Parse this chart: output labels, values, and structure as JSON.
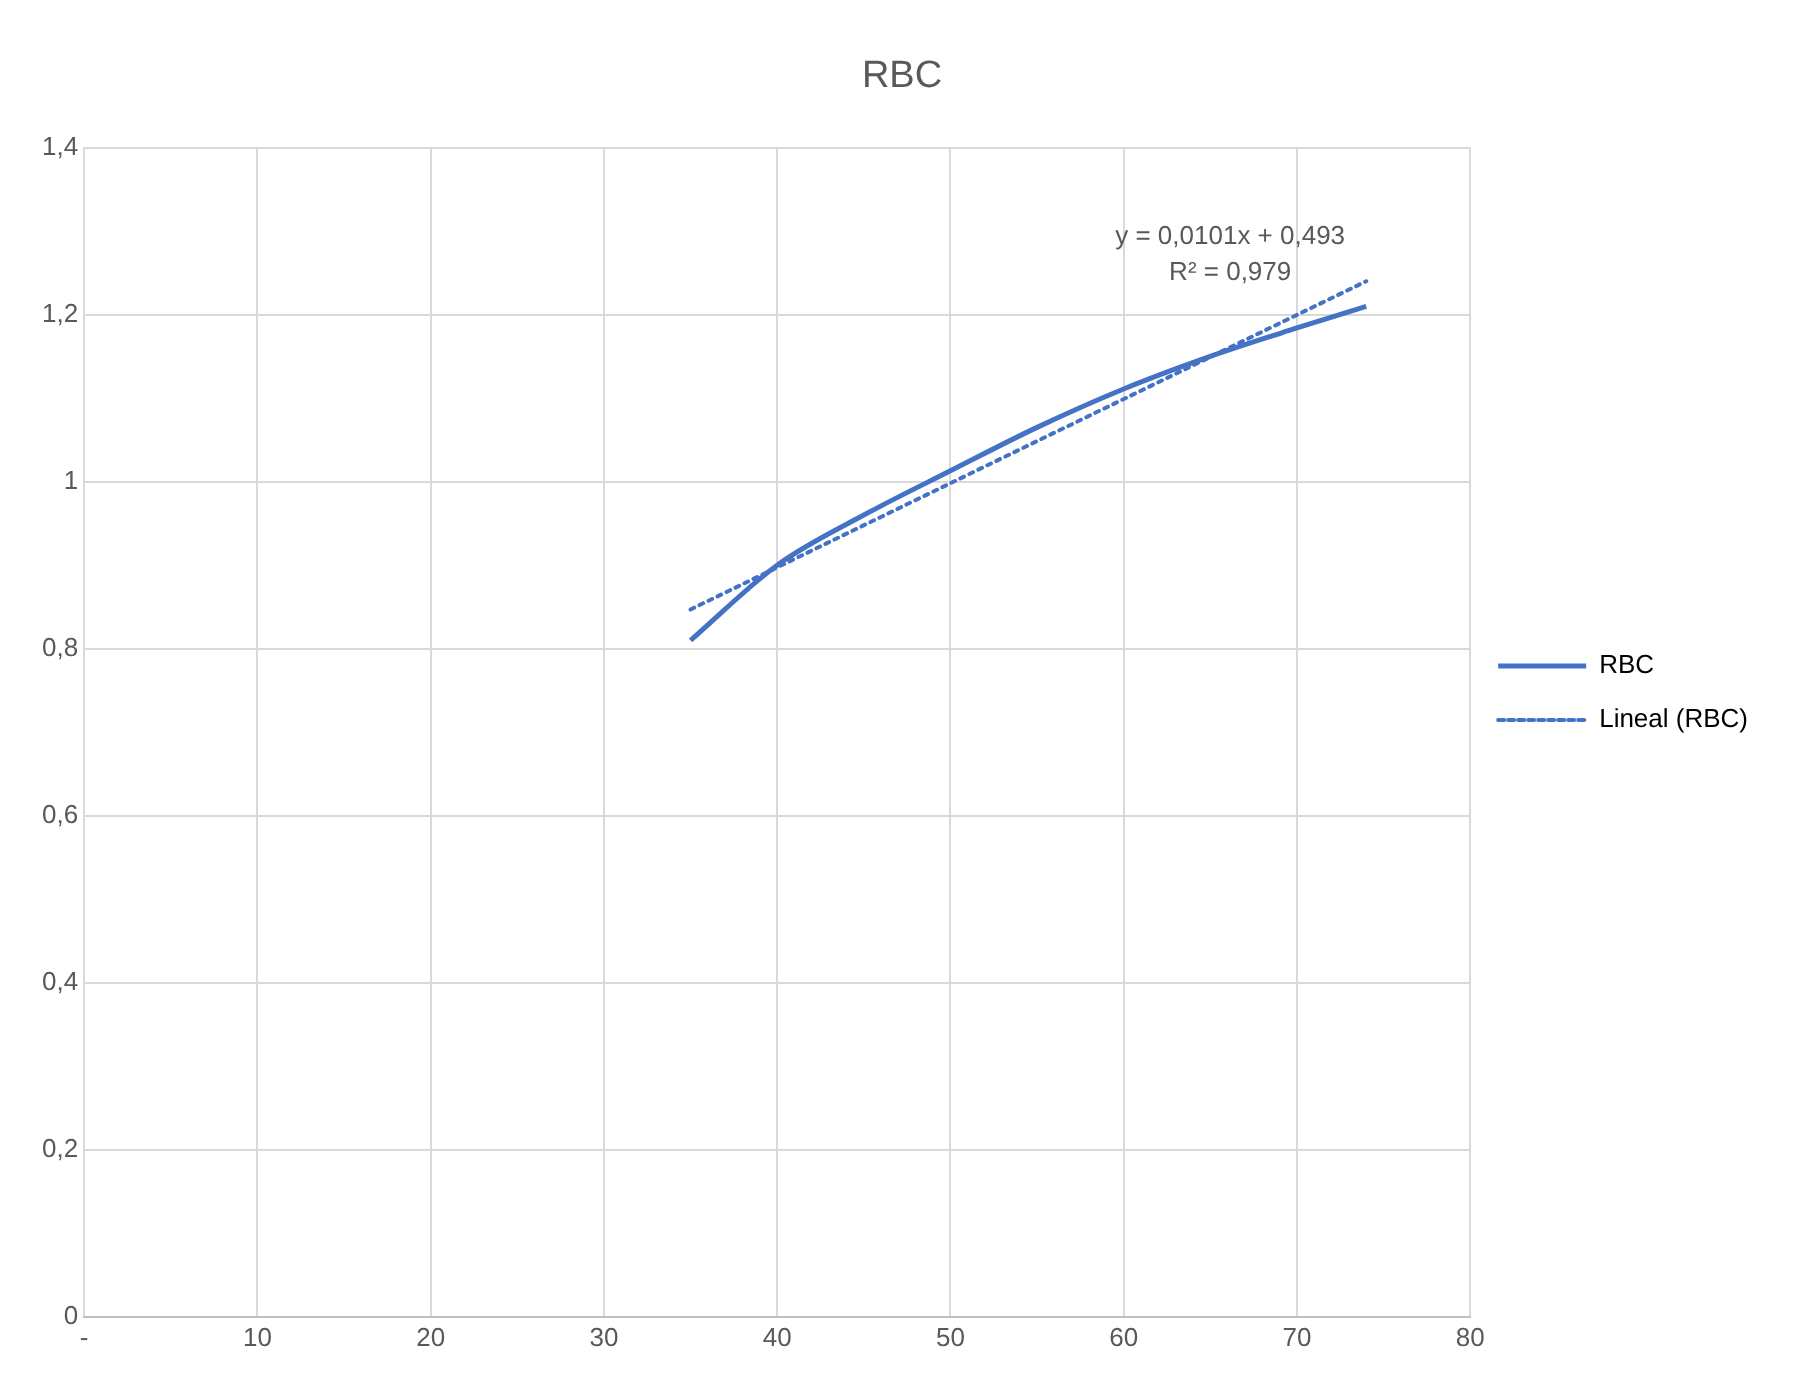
{
  "chart_data": {
    "type": "line",
    "title": "RBC",
    "x": [
      35,
      40,
      45,
      50,
      55,
      60,
      65,
      70,
      74
    ],
    "series": [
      {
        "name": "RBC",
        "color": "#4472c4",
        "values": [
          0.81,
          0.9,
          0.96,
          1.013,
          1.065,
          1.111,
          1.15,
          1.184,
          1.21
        ],
        "line_style": "solid"
      },
      {
        "name": "Lineal (RBC)",
        "color": "#4472c4",
        "type": "line",
        "x": [
          35,
          74
        ],
        "values": [
          0.847,
          1.24
        ],
        "line_style": "dotted"
      }
    ],
    "xlim": [
      0,
      80
    ],
    "xticks": [
      {
        "value": 0,
        "label": "-"
      },
      10,
      20,
      30,
      40,
      50,
      60,
      70,
      80
    ],
    "ylim": [
      0,
      1.4
    ],
    "yticks": [
      0,
      {
        "value": 0.2,
        "label": "0,2"
      },
      {
        "value": 0.4,
        "label": "0,4"
      },
      {
        "value": 0.6,
        "label": "0,6"
      },
      {
        "value": 0.8,
        "label": "0,8"
      },
      1,
      {
        "value": 1.2,
        "label": "1,2"
      },
      {
        "value": 1.4,
        "label": "1,4"
      }
    ],
    "grid": true,
    "legend": "right",
    "marker": "none",
    "annotations": [
      "y = 0,0101x + 0,493",
      "R² = 0,979"
    ]
  }
}
